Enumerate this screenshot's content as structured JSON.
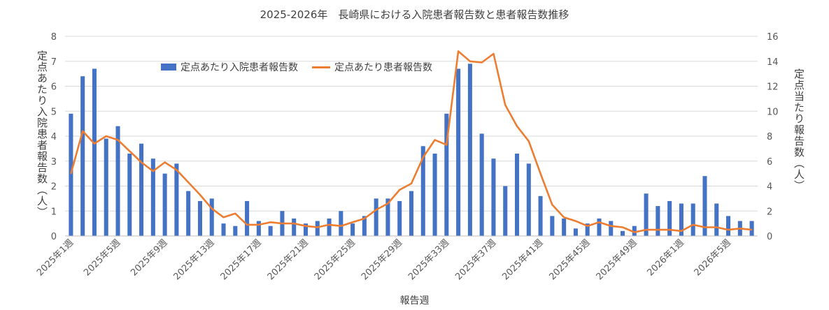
{
  "chart_data": {
    "type": "bar",
    "title": "2025-2026年　長崎県における入院患者報告数と患者報告数推移",
    "xlabel": "報告週",
    "ylabel_left": "定点あたり入院患者報告数（人）",
    "ylabel_right": "定点当たり報告数（人）",
    "ylim_left": [
      0,
      8
    ],
    "ylim_right": [
      0,
      16
    ],
    "yticks_left": [
      "0",
      "1",
      "2",
      "3",
      "4",
      "5",
      "6",
      "7",
      "8"
    ],
    "yticks_right": [
      "0",
      "2",
      "4",
      "6",
      "8",
      "10",
      "12",
      "14",
      "16"
    ],
    "x_tick_labels": [
      "2025年1週",
      "2025年5週",
      "2025年9週",
      "2025年13週",
      "2025年17週",
      "2025年21週",
      "2025年25週",
      "2025年29週",
      "2025年33週",
      "2025年37週",
      "2025年41週",
      "2025年45週",
      "2025年49週",
      "2026年1週",
      "2026年5週"
    ],
    "grid": true,
    "legend_placement": "top-left",
    "colors": {
      "bar": "#4472C4",
      "line": "#ED7D31",
      "grid": "#D9D9D9"
    },
    "categories": [
      "2025年1週",
      "2025年2週",
      "2025年3週",
      "2025年4週",
      "2025年5週",
      "2025年6週",
      "2025年7週",
      "2025年8週",
      "2025年9週",
      "2025年10週",
      "2025年11週",
      "2025年12週",
      "2025年13週",
      "2025年14週",
      "2025年15週",
      "2025年16週",
      "2025年17週",
      "2025年18週",
      "2025年19週",
      "2025年20週",
      "2025年21週",
      "2025年22週",
      "2025年23週",
      "2025年24週",
      "2025年25週",
      "2025年26週",
      "2025年27週",
      "2025年28週",
      "2025年29週",
      "2025年30週",
      "2025年31週",
      "2025年32週",
      "2025年33週",
      "2025年34週",
      "2025年35週",
      "2025年36週",
      "2025年37週",
      "2025年38週",
      "2025年39週",
      "2025年40週",
      "2025年41週",
      "2025年42週",
      "2025年43週",
      "2025年44週",
      "2025年45週",
      "2025年46週",
      "2025年47週",
      "2025年48週",
      "2025年49週",
      "2025年50週",
      "2025年51週",
      "2025年52週",
      "2026年1週",
      "2026年2週",
      "2026年3週",
      "2026年4週",
      "2026年5週",
      "2026年6週",
      "2026年7週"
    ],
    "series": [
      {
        "name": "定点あたり入院患者報告数",
        "type": "bar",
        "axis": "left",
        "values": [
          4.9,
          6.4,
          6.7,
          3.9,
          4.4,
          3.3,
          3.7,
          3.1,
          2.5,
          2.9,
          1.8,
          1.4,
          1.5,
          0.5,
          0.4,
          1.4,
          0.6,
          0.4,
          1.0,
          0.7,
          0.5,
          0.6,
          0.7,
          1.0,
          0.5,
          0.8,
          1.5,
          1.5,
          1.4,
          1.8,
          3.6,
          3.3,
          4.9,
          6.7,
          6.9,
          4.1,
          3.1,
          2.0,
          3.3,
          2.9,
          1.6,
          0.8,
          0.7,
          0.3,
          0.5,
          0.7,
          0.6,
          0.2,
          0.4,
          1.7,
          1.2,
          1.4,
          1.3,
          1.3,
          2.4,
          1.3,
          0.8,
          0.6,
          0.6
        ]
      },
      {
        "name": "定点あたり患者報告数",
        "type": "line",
        "axis": "right",
        "values": [
          5.0,
          8.4,
          7.4,
          8.0,
          7.7,
          6.8,
          5.9,
          5.2,
          5.9,
          5.3,
          4.3,
          3.3,
          2.2,
          1.5,
          1.8,
          0.9,
          0.9,
          1.1,
          1.0,
          1.0,
          0.8,
          0.7,
          0.9,
          0.8,
          1.1,
          1.4,
          2.1,
          2.6,
          3.7,
          4.2,
          6.3,
          7.7,
          7.3,
          14.8,
          14.0,
          13.9,
          14.6,
          10.5,
          8.8,
          7.6,
          5.0,
          2.5,
          1.5,
          1.2,
          0.8,
          1.1,
          0.8,
          0.7,
          0.3,
          0.5,
          0.5,
          0.5,
          0.4,
          0.9,
          0.7,
          0.7,
          0.5,
          0.6,
          0.5
        ]
      }
    ]
  }
}
